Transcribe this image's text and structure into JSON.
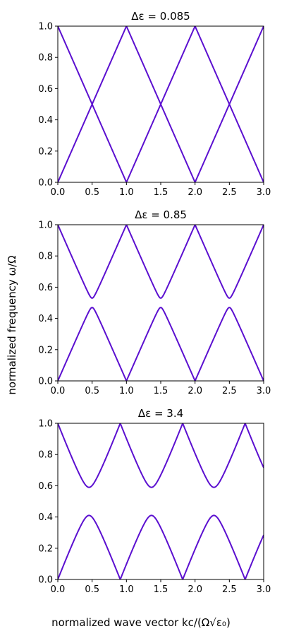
{
  "figure": {
    "ylabel": "normalized frequency ω/Ω",
    "xlabel": "normalized wave vector kc/(Ω√ε₀)",
    "line_color": "#5b0fd0"
  },
  "chart_data": [
    {
      "type": "line",
      "title": "Δε = 0.085",
      "xlim": [
        0,
        3
      ],
      "ylim": [
        0,
        1
      ],
      "xticks": [
        "0.0",
        "0.5",
        "1.0",
        "1.5",
        "2.0",
        "2.5",
        "3.0"
      ],
      "yticks": [
        "0.0",
        "0.2",
        "0.4",
        "0.6",
        "0.8",
        "1.0"
      ],
      "grid": false,
      "gap_half_width": 0.0,
      "band_period": 1.0,
      "series": [
        {
          "x": [
            0,
            1,
            2,
            3
          ],
          "y": [
            0,
            1,
            0,
            1
          ]
        },
        {
          "x": [
            0,
            1,
            2,
            3
          ],
          "y": [
            1,
            0,
            1,
            0
          ]
        }
      ]
    },
    {
      "type": "line",
      "title": "Δε = 0.85",
      "xlim": [
        0,
        3
      ],
      "ylim": [
        0,
        1
      ],
      "xticks": [
        "0.0",
        "0.5",
        "1.0",
        "1.5",
        "2.0",
        "2.5",
        "3.0"
      ],
      "yticks": [
        "0.0",
        "0.2",
        "0.4",
        "0.6",
        "0.8",
        "1.0"
      ],
      "grid": false,
      "gap_half_width": 0.03,
      "band_period": 1.0,
      "series": [
        {
          "x": [
            0,
            1,
            2,
            3
          ],
          "y": [
            0,
            1,
            0,
            1
          ]
        },
        {
          "x": [
            0,
            1,
            2,
            3
          ],
          "y": [
            1,
            0,
            1,
            0
          ]
        }
      ]
    },
    {
      "type": "line",
      "title": "Δε = 3.4",
      "xlim": [
        0,
        3
      ],
      "ylim": [
        0,
        1
      ],
      "xticks": [
        "0.0",
        "0.5",
        "1.0",
        "1.5",
        "2.0",
        "2.5",
        "3.0"
      ],
      "yticks": [
        "0.0",
        "0.2",
        "0.4",
        "0.6",
        "0.8",
        "1.0"
      ],
      "grid": false,
      "gap_half_width": 0.09,
      "band_period": 0.91,
      "series": [
        {
          "x": [
            0,
            0.91,
            1.82,
            2.73,
            3.0
          ],
          "y": [
            0,
            1,
            0,
            1,
            0.7
          ]
        },
        {
          "x": [
            0,
            0.91,
            1.82,
            2.73,
            3.0
          ],
          "y": [
            1,
            0,
            1,
            0,
            0.3
          ]
        }
      ]
    }
  ]
}
